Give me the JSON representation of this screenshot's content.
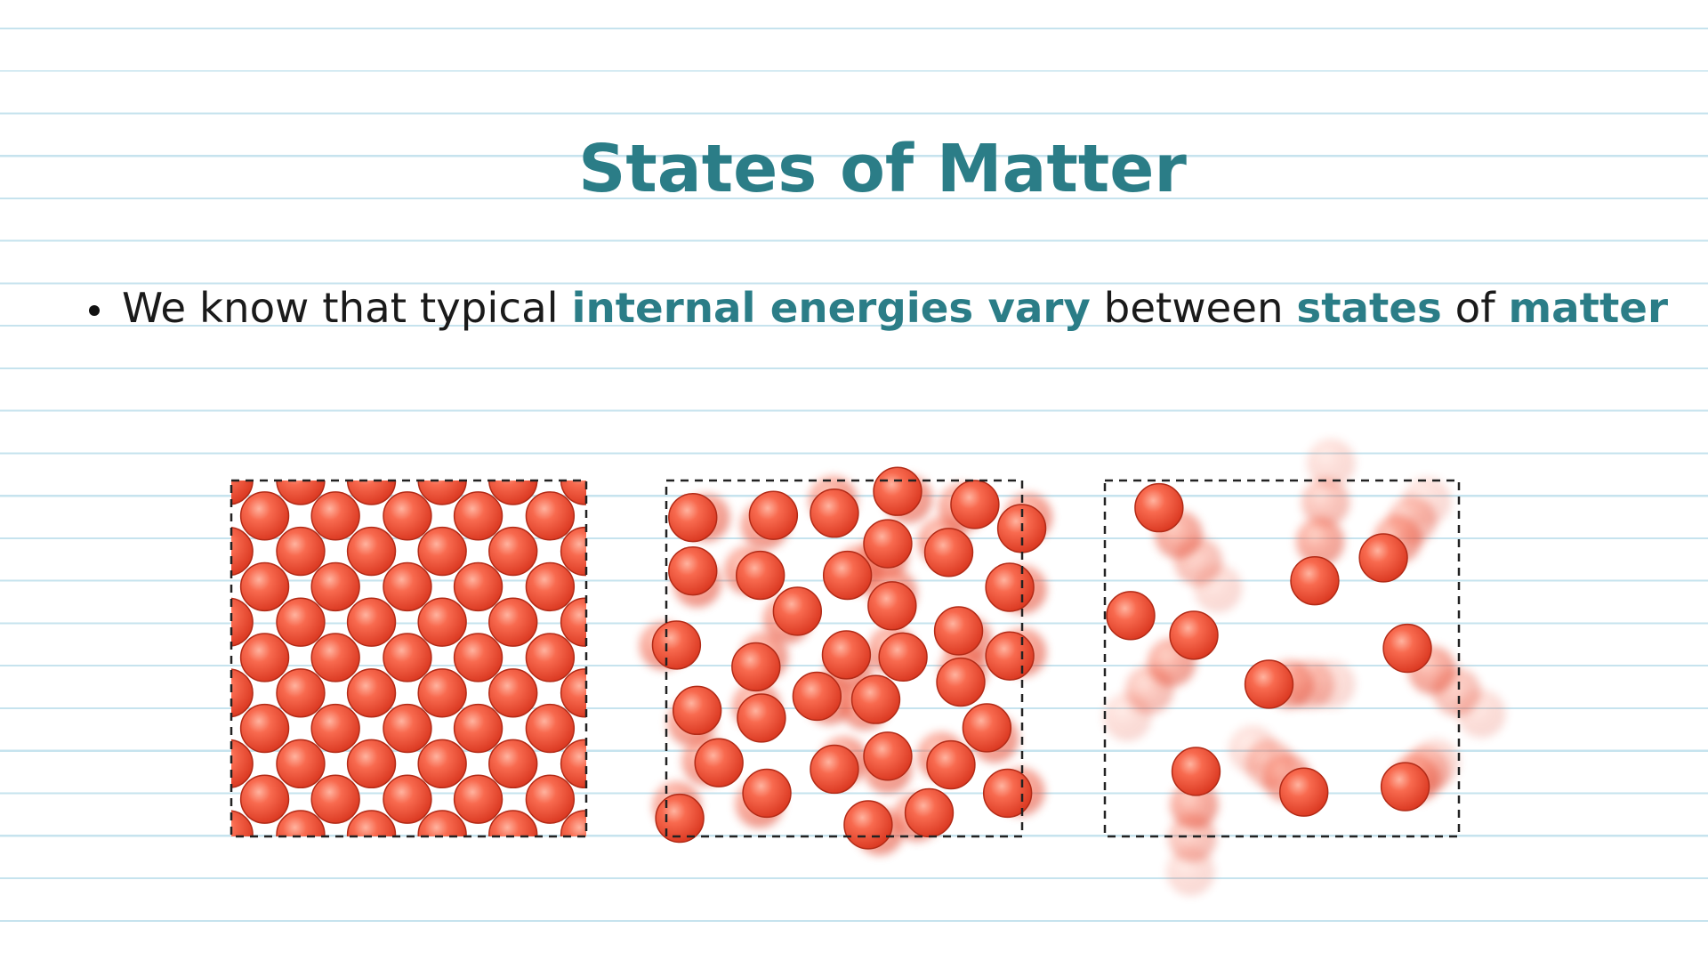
{
  "header": {
    "title": "States of Matter"
  },
  "bullet": {
    "segments": [
      {
        "text": "We know that typical ",
        "emphasis": false
      },
      {
        "text": "internal energies vary",
        "emphasis": true
      },
      {
        "text": " between ",
        "emphasis": false
      },
      {
        "text": "states",
        "emphasis": true
      },
      {
        "text": " of ",
        "emphasis": false
      },
      {
        "text": "matter",
        "emphasis": true
      }
    ]
  }
}
